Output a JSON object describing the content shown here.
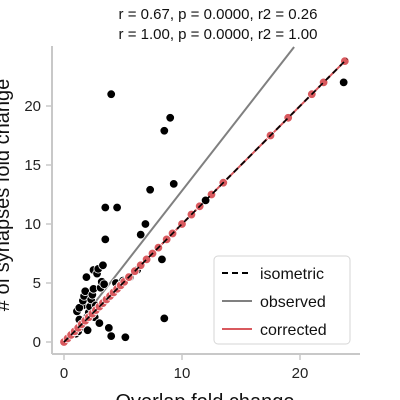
{
  "chart_data": {
    "type": "scatter",
    "title_lines": [
      "r = 0.67, p = 0.0000, r2 = 0.26",
      "r = 1.00, p = 0.0000, r2 = 1.00"
    ],
    "xlabel": "Overlap fold change",
    "ylabel": "# of synapses fold change",
    "xlim": [
      -1,
      25
    ],
    "ylim": [
      -1,
      25
    ],
    "xticks": [
      0,
      10,
      20
    ],
    "yticks": [
      0,
      5,
      10,
      15,
      20
    ],
    "grid": false,
    "legend_position": "bottom-right",
    "legend": [
      {
        "name": "isometric",
        "color": "#000000",
        "style": "dashed"
      },
      {
        "name": "observed",
        "color": "#808080",
        "style": "solid"
      },
      {
        "name": "corrected",
        "color": "#d9595e",
        "style": "solid"
      }
    ],
    "lines": [
      {
        "name": "isometric",
        "color": "#000000",
        "dash": true,
        "x": [
          0,
          24
        ],
        "y": [
          0,
          24
        ]
      },
      {
        "name": "observed",
        "color": "#808080",
        "dash": false,
        "x": [
          0,
          19.5
        ],
        "y": [
          0,
          25
        ]
      },
      {
        "name": "corrected",
        "color": "#d9595e",
        "dash": false,
        "x": [
          0,
          24
        ],
        "y": [
          0,
          24
        ]
      }
    ],
    "series": [
      {
        "name": "observed",
        "color": "#000000",
        "points": [
          [
            0.0,
            0.0
          ],
          [
            0.5,
            0.5
          ],
          [
            1.0,
            0.7
          ],
          [
            1.2,
            0.9
          ],
          [
            1.3,
            1.9
          ],
          [
            1.5,
            1.3
          ],
          [
            1.6,
            3.1
          ],
          [
            1.1,
            2.6
          ],
          [
            1.3,
            2.9
          ],
          [
            1.6,
            3.5
          ],
          [
            1.7,
            3.9
          ],
          [
            1.8,
            4.3
          ],
          [
            1.9,
            5.5
          ],
          [
            2.0,
            1.0
          ],
          [
            2.0,
            2.2
          ],
          [
            2.1,
            2.5
          ],
          [
            2.2,
            3.0
          ],
          [
            2.3,
            3.6
          ],
          [
            2.4,
            4.0
          ],
          [
            2.5,
            4.5
          ],
          [
            2.5,
            6.1
          ],
          [
            2.6,
            2.1
          ],
          [
            2.7,
            3.1
          ],
          [
            2.8,
            5.8
          ],
          [
            2.9,
            6.2
          ],
          [
            3.0,
            1.6
          ],
          [
            3.1,
            4.6
          ],
          [
            3.2,
            5.1
          ],
          [
            3.3,
            6.5
          ],
          [
            3.4,
            4.9
          ],
          [
            3.5,
            8.7
          ],
          [
            3.5,
            11.4
          ],
          [
            3.8,
            1.2
          ],
          [
            4.0,
            21.0
          ],
          [
            4.0,
            0.5
          ],
          [
            4.4,
            5.0
          ],
          [
            4.5,
            11.4
          ],
          [
            4.8,
            4.8
          ],
          [
            5.0,
            5.2
          ],
          [
            5.2,
            0.4
          ],
          [
            5.6,
            5.5
          ],
          [
            6.2,
            6.1
          ],
          [
            6.5,
            9.1
          ],
          [
            6.9,
            10.0
          ],
          [
            7.3,
            12.9
          ],
          [
            8.3,
            7.0
          ],
          [
            8.5,
            2.0
          ],
          [
            8.5,
            17.9
          ],
          [
            9.0,
            19.0
          ],
          [
            9.3,
            13.4
          ],
          [
            12.0,
            12.0
          ],
          [
            23.7,
            22.0
          ]
        ]
      },
      {
        "name": "corrected",
        "color": "#d9595e",
        "points": [
          [
            0.0,
            0.0
          ],
          [
            0.3,
            0.3
          ],
          [
            0.6,
            0.6
          ],
          [
            0.9,
            0.9
          ],
          [
            1.2,
            1.2
          ],
          [
            1.5,
            1.5
          ],
          [
            1.8,
            1.8
          ],
          [
            2.1,
            2.1
          ],
          [
            2.4,
            2.4
          ],
          [
            2.7,
            2.7
          ],
          [
            3.0,
            3.0
          ],
          [
            3.3,
            3.3
          ],
          [
            3.6,
            3.6
          ],
          [
            3.9,
            3.9
          ],
          [
            4.2,
            4.2
          ],
          [
            4.5,
            4.5
          ],
          [
            4.8,
            4.8
          ],
          [
            5.1,
            5.1
          ],
          [
            5.5,
            5.5
          ],
          [
            6.0,
            6.0
          ],
          [
            6.5,
            6.5
          ],
          [
            7.0,
            7.0
          ],
          [
            7.5,
            7.5
          ],
          [
            8.0,
            8.0
          ],
          [
            8.7,
            8.7
          ],
          [
            9.2,
            9.2
          ],
          [
            10.0,
            10.0
          ],
          [
            10.8,
            10.8
          ],
          [
            11.5,
            11.5
          ],
          [
            12.5,
            12.5
          ],
          [
            13.5,
            13.5
          ],
          [
            17.5,
            17.5
          ],
          [
            19.0,
            19.0
          ],
          [
            21.0,
            21.0
          ],
          [
            22.0,
            22.0
          ],
          [
            23.8,
            23.8
          ]
        ]
      }
    ]
  }
}
